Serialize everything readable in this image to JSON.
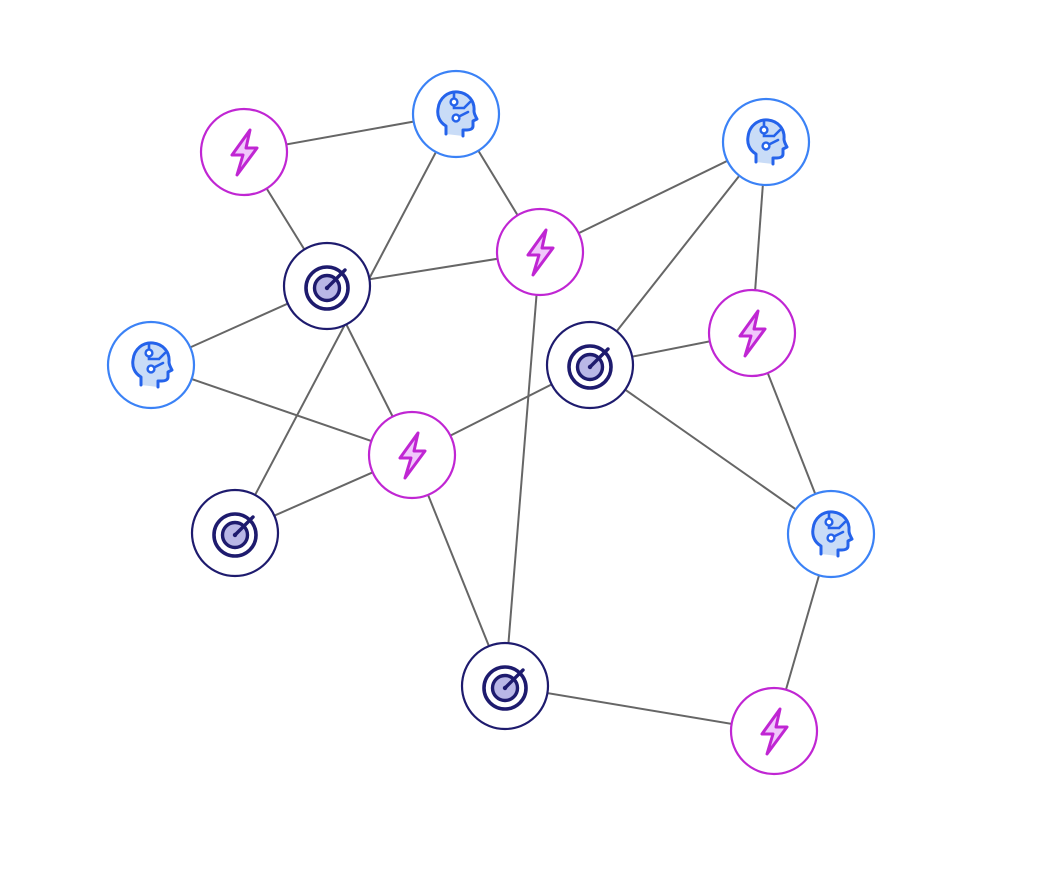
{
  "diagram": {
    "type": "network-graph",
    "colors": {
      "edge": "#666666",
      "background": "#ffffff",
      "head_ring": "#3b82f6",
      "head_fill": "#c9dcf7",
      "head_stroke": "#2563eb",
      "bolt_ring": "#c026d3",
      "bolt_fill": "#f0c8fb",
      "bolt_stroke": "#c026d3",
      "target_ring": "#1e1b6e",
      "target_fill": "#b9b7e6",
      "target_stroke": "#1e1b6e"
    },
    "node_kinds": {
      "head": "head-circuit-icon",
      "bolt": "lightning-bolt-icon",
      "target": "target-icon"
    },
    "nodes": [
      {
        "id": "bolt-1",
        "kind": "bolt"
      },
      {
        "id": "head-1",
        "kind": "head"
      },
      {
        "id": "head-2",
        "kind": "head"
      },
      {
        "id": "target-1",
        "kind": "target"
      },
      {
        "id": "bolt-2",
        "kind": "bolt"
      },
      {
        "id": "head-3",
        "kind": "head"
      },
      {
        "id": "bolt-3",
        "kind": "bolt"
      },
      {
        "id": "target-2",
        "kind": "target"
      },
      {
        "id": "bolt-4",
        "kind": "bolt"
      },
      {
        "id": "target-3",
        "kind": "target"
      },
      {
        "id": "head-4",
        "kind": "head"
      },
      {
        "id": "target-4",
        "kind": "target"
      },
      {
        "id": "bolt-5",
        "kind": "bolt"
      }
    ],
    "edges": [
      [
        "bolt-1",
        "head-1"
      ],
      [
        "bolt-1",
        "target-1"
      ],
      [
        "head-1",
        "bolt-2"
      ],
      [
        "head-1",
        "target-3"
      ],
      [
        "target-1",
        "bolt-2"
      ],
      [
        "target-1",
        "head-3"
      ],
      [
        "target-1",
        "bolt-4"
      ],
      [
        "head-3",
        "bolt-4"
      ],
      [
        "bolt-2",
        "head-2"
      ],
      [
        "bolt-2",
        "target-4"
      ],
      [
        "head-2",
        "target-2"
      ],
      [
        "head-2",
        "bolt-3"
      ],
      [
        "target-2",
        "bolt-3"
      ],
      [
        "target-2",
        "bolt-4"
      ],
      [
        "target-2",
        "head-4"
      ],
      [
        "bolt-3",
        "head-4"
      ],
      [
        "bolt-4",
        "target-3"
      ],
      [
        "bolt-4",
        "target-4"
      ],
      [
        "target-4",
        "bolt-5"
      ],
      [
        "head-4",
        "bolt-5"
      ]
    ]
  }
}
